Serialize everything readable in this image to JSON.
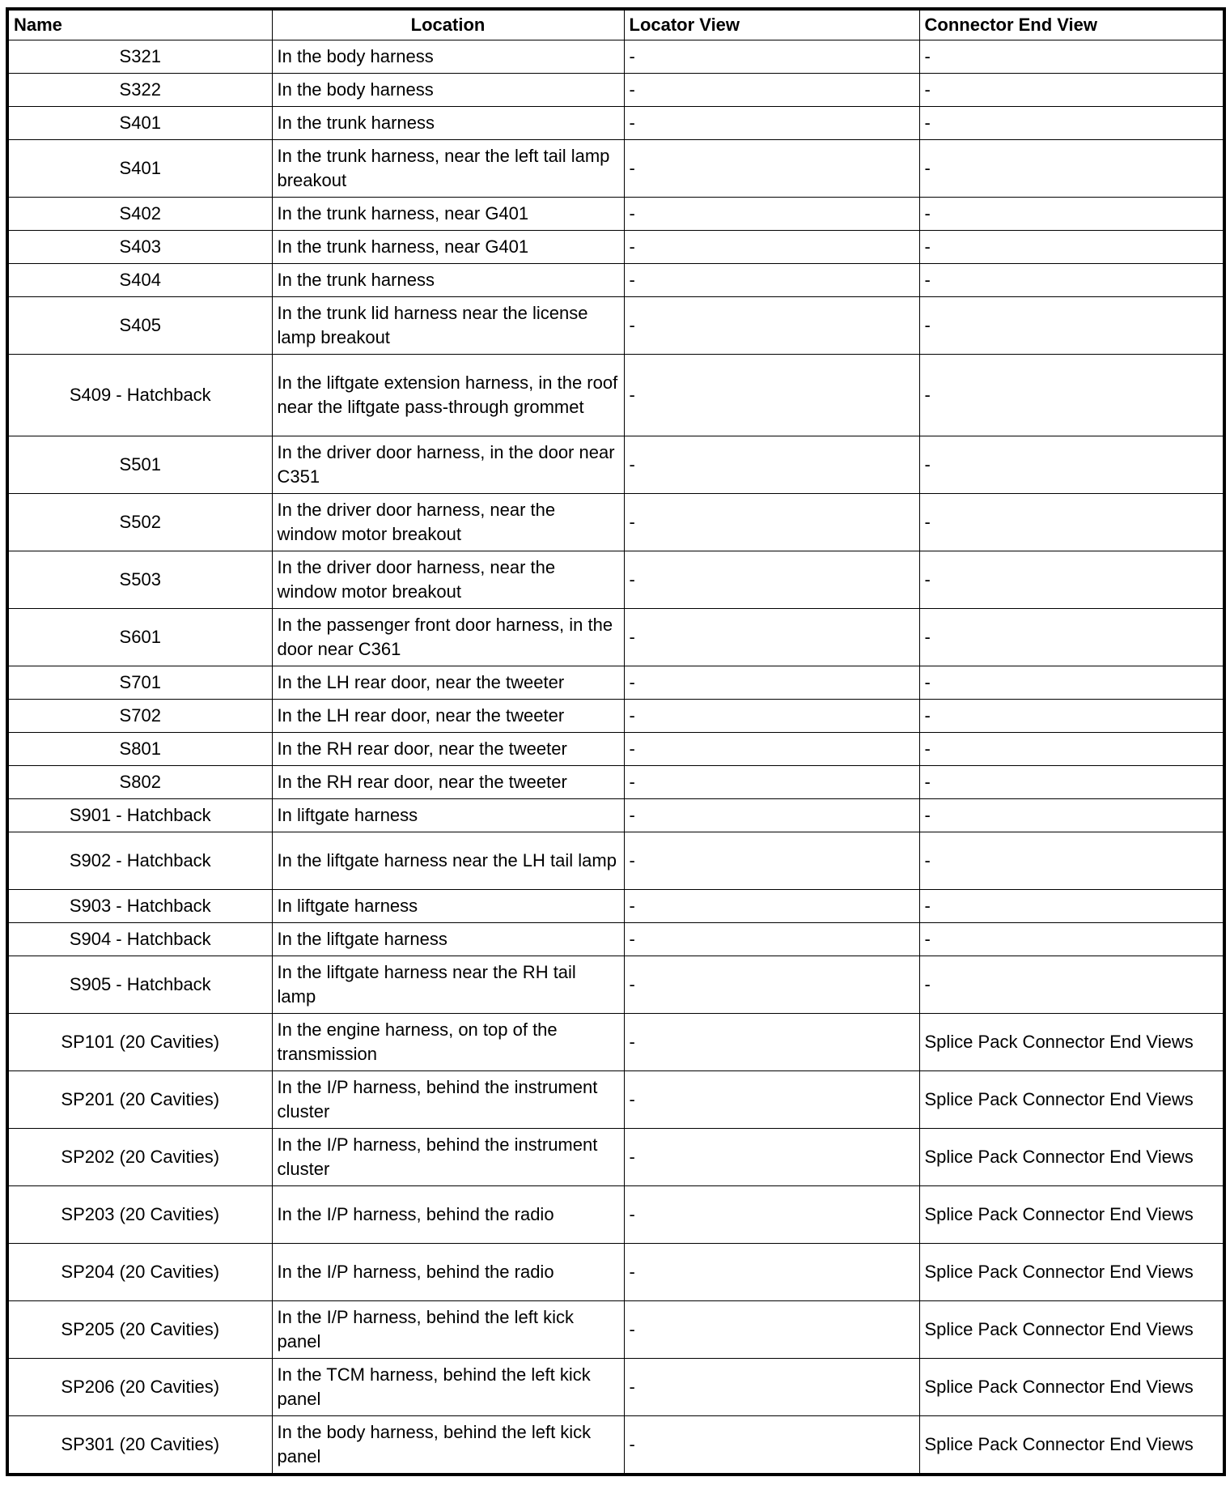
{
  "headers": [
    "Name",
    "Location",
    "Locator View",
    "Connector End View"
  ],
  "rows": [
    {
      "name": "S321",
      "location": "In the body harness",
      "locator": "-",
      "end_view": "-"
    },
    {
      "name": "S322",
      "location": "In the body harness",
      "locator": "-",
      "end_view": "-"
    },
    {
      "name": "S401",
      "location": "In the trunk harness",
      "locator": "-",
      "end_view": "-"
    },
    {
      "name": "S401",
      "location": "In the trunk harness, near the left tail lamp breakout",
      "locator": "-",
      "end_view": "-"
    },
    {
      "name": "S402",
      "location": "In the trunk harness, near G401",
      "locator": "-",
      "end_view": "-"
    },
    {
      "name": "S403",
      "location": "In the trunk harness, near G401",
      "locator": "-",
      "end_view": "-"
    },
    {
      "name": "S404",
      "location": "In the trunk harness",
      "locator": "-",
      "end_view": "-"
    },
    {
      "name": "S405",
      "location": "In the trunk lid harness near the license lamp breakout",
      "locator": "-",
      "end_view": "-"
    },
    {
      "name": "S409 - Hatchback",
      "location": "In the liftgate extension harness, in the roof near the liftgate pass-through grommet",
      "locator": "-",
      "end_view": "-"
    },
    {
      "name": "S501",
      "location": "In the driver door harness, in the door near C351",
      "locator": "-",
      "end_view": "-"
    },
    {
      "name": "S502",
      "location": "In the driver door harness, near the window motor breakout",
      "locator": "-",
      "end_view": "-"
    },
    {
      "name": "S503",
      "location": "In the driver door harness, near the window motor breakout",
      "locator": "-",
      "end_view": "-"
    },
    {
      "name": "S601",
      "location": "In the passenger front door harness, in the door near C361",
      "locator": "-",
      "end_view": "-"
    },
    {
      "name": "S701",
      "location": "In the LH rear door, near the tweeter",
      "locator": "-",
      "end_view": "-"
    },
    {
      "name": "S702",
      "location": "In the LH rear door, near the tweeter",
      "locator": "-",
      "end_view": "-"
    },
    {
      "name": "S801",
      "location": "In the RH rear door, near the tweeter",
      "locator": "-",
      "end_view": "-"
    },
    {
      "name": "S802",
      "location": "In the RH rear door, near the tweeter",
      "locator": "-",
      "end_view": "-"
    },
    {
      "name": "S901 - Hatchback",
      "location": "In liftgate harness",
      "locator": "-",
      "end_view": "-"
    },
    {
      "name": "S902 - Hatchback",
      "location": "In the liftgate harness near the LH tail lamp",
      "locator": "-",
      "end_view": "-"
    },
    {
      "name": "S903 - Hatchback",
      "location": "In liftgate harness",
      "locator": "-",
      "end_view": "-"
    },
    {
      "name": "S904 - Hatchback",
      "location": "In the liftgate harness",
      "locator": "-",
      "end_view": "-"
    },
    {
      "name": "S905 - Hatchback",
      "location": "In the liftgate harness near the RH tail lamp",
      "locator": "-",
      "end_view": "-"
    },
    {
      "name": "SP101 (20 Cavities)",
      "location": "In the engine harness, on top of the transmission",
      "locator": "-",
      "end_view": "Splice Pack Connector End Views"
    },
    {
      "name": "SP201 (20 Cavities)",
      "location": "In the I/P harness, behind the instrument cluster",
      "locator": "-",
      "end_view": "Splice Pack Connector End Views"
    },
    {
      "name": "SP202 (20 Cavities)",
      "location": "In the I/P harness, behind the instrument cluster",
      "locator": "-",
      "end_view": "Splice Pack Connector End Views"
    },
    {
      "name": "SP203 (20 Cavities)",
      "location": "In the I/P harness, behind the radio",
      "locator": "-",
      "end_view": "Splice Pack Connector End Views"
    },
    {
      "name": "SP204 (20 Cavities)",
      "location": "In the I/P harness, behind the radio",
      "locator": "-",
      "end_view": "Splice Pack Connector End Views"
    },
    {
      "name": "SP205 (20 Cavities)",
      "location": "In the I/P harness, behind the left kick panel",
      "locator": "-",
      "end_view": "Splice Pack Connector End Views"
    },
    {
      "name": "SP206 (20 Cavities)",
      "location": "In the TCM harness, behind the left kick panel",
      "locator": "-",
      "end_view": "Splice Pack Connector End Views"
    },
    {
      "name": "SP301 (20 Cavities)",
      "location": "In the body harness, behind the left kick panel",
      "locator": "-",
      "end_view": "Splice Pack Connector End Views"
    }
  ]
}
